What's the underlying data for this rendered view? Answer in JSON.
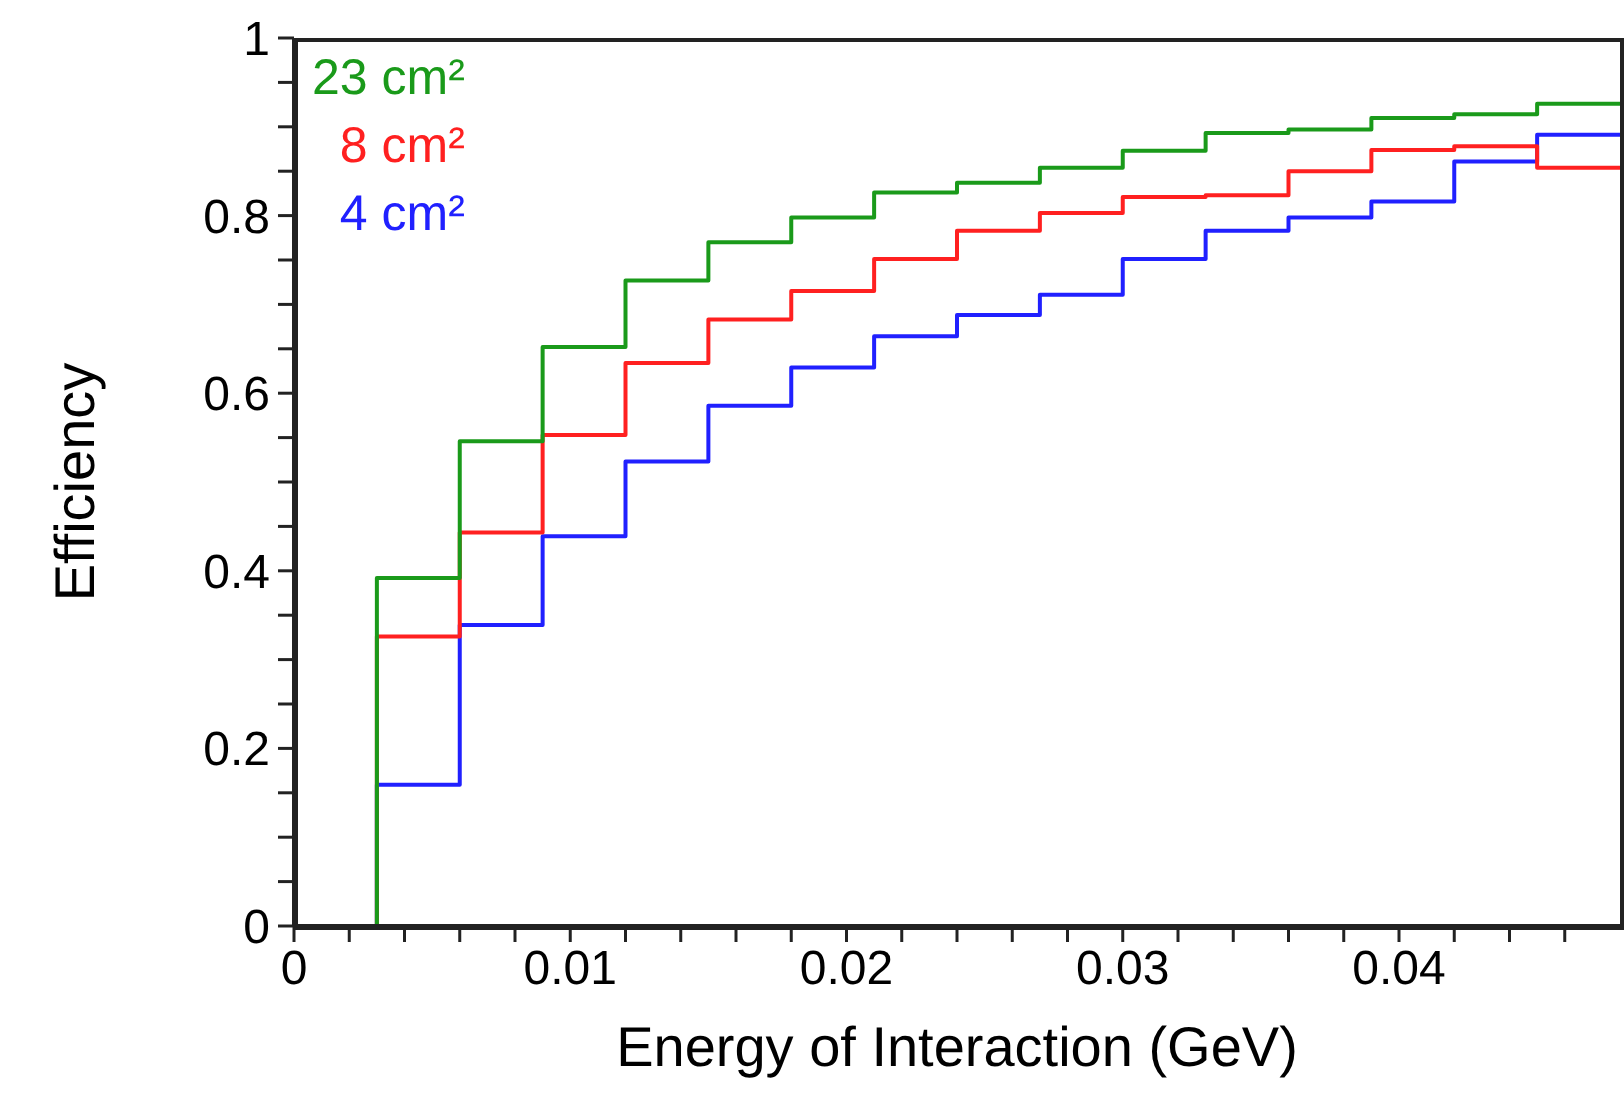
{
  "chart_data": {
    "type": "histogram",
    "xlabel": "Energy of Interaction (GeV)",
    "ylabel": "Efficiency",
    "bins": [
      0,
      0.003,
      0.006,
      0.009,
      0.012,
      0.015,
      0.018,
      0.021,
      0.024,
      0.027,
      0.03,
      0.033,
      0.036,
      0.039,
      0.042,
      0.045,
      0.048
    ],
    "series": [
      {
        "name": "23 cm²",
        "color": "#1a9a1a",
        "values": [
          0,
          0.392,
          0.546,
          0.652,
          0.727,
          0.77,
          0.798,
          0.826,
          0.837,
          0.854,
          0.873,
          0.893,
          0.897,
          0.91,
          0.914,
          0.926
        ]
      },
      {
        "name": "8 cm²",
        "color": "#ff2020",
        "values": [
          0,
          0.326,
          0.443,
          0.553,
          0.634,
          0.683,
          0.715,
          0.751,
          0.783,
          0.803,
          0.821,
          0.823,
          0.85,
          0.874,
          0.878,
          0.854
        ]
      },
      {
        "name": "4 cm²",
        "color": "#2020ff",
        "values": [
          0,
          0.159,
          0.339,
          0.439,
          0.523,
          0.586,
          0.629,
          0.664,
          0.688,
          0.711,
          0.751,
          0.783,
          0.798,
          0.816,
          0.861,
          0.891
        ]
      }
    ],
    "xlim": [
      0,
      0.048
    ],
    "xticks": [
      0,
      {
        "value": 0.002,
        "label": null
      },
      {
        "value": 0.004,
        "label": null
      },
      {
        "value": 0.006,
        "label": null
      },
      {
        "value": 0.008,
        "label": null
      },
      0.01,
      {
        "value": 0.012,
        "label": null
      },
      {
        "value": 0.014,
        "label": null
      },
      {
        "value": 0.016,
        "label": null
      },
      {
        "value": 0.018,
        "label": null
      },
      0.02,
      {
        "value": 0.022,
        "label": null
      },
      {
        "value": 0.024,
        "label": null
      },
      {
        "value": 0.026,
        "label": null
      },
      {
        "value": 0.028,
        "label": null
      },
      0.03,
      {
        "value": 0.032,
        "label": null
      },
      {
        "value": 0.034,
        "label": null
      },
      {
        "value": 0.036,
        "label": null
      },
      {
        "value": 0.038,
        "label": null
      },
      0.04,
      {
        "value": 0.042,
        "label": null
      },
      {
        "value": 0.044,
        "label": null
      },
      {
        "value": 0.046,
        "label": null
      }
    ],
    "ylim": [
      0,
      1
    ],
    "yticks": [
      0,
      {
        "value": 0.05,
        "label": null
      },
      {
        "value": 0.1,
        "label": null
      },
      {
        "value": 0.15,
        "label": null
      },
      0.2,
      {
        "value": 0.25,
        "label": null
      },
      {
        "value": 0.3,
        "label": null
      },
      {
        "value": 0.35,
        "label": null
      },
      0.4,
      {
        "value": 0.45,
        "label": null
      },
      {
        "value": 0.5,
        "label": null
      },
      {
        "value": 0.55,
        "label": null
      },
      0.6,
      {
        "value": 0.65,
        "label": null
      },
      {
        "value": 0.7,
        "label": null
      },
      {
        "value": 0.75,
        "label": null
      },
      0.8,
      {
        "value": 0.85,
        "label": null
      },
      {
        "value": 0.9,
        "label": null
      },
      {
        "value": 0.95,
        "label": null
      },
      1
    ],
    "legend": "top left"
  }
}
